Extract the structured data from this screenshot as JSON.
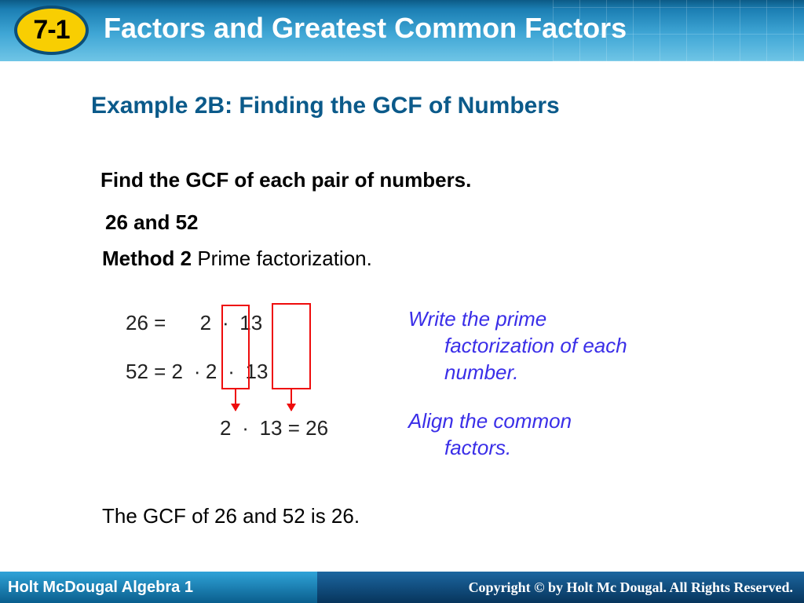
{
  "header": {
    "section_number": "7-1",
    "title": "Factors and Greatest Common Factors",
    "bg_gradient_top": "#0c5a85",
    "bg_gradient_bottom": "#6fc5e6",
    "badge_fill": "#f8ce02",
    "badge_border": "#0b4f7a",
    "title_color": "#ffffff",
    "title_fontsize": 36
  },
  "example": {
    "title": "Example 2B: Finding the GCF of Numbers",
    "title_color": "#0b5a8a",
    "title_fontsize": 30
  },
  "body": {
    "instruction": "Find the GCF of each pair of numbers.",
    "numbers": "26 and 52",
    "method_label": "Method 2",
    "method_desc": " Prime factorization.",
    "conclusion": "The GCF of 26 and 52 is 26.",
    "text_color": "#000000",
    "fontsize": 26
  },
  "work": {
    "row1": "26 =      2  ∙  13",
    "row2": "52 = 2  ∙ 2  ∙  13",
    "row3": "2  ∙  13 = 26",
    "box_border_color": "#ee0c0c",
    "arrow_color": "#ee0c0c"
  },
  "hints": {
    "hint1_line1": "Write the prime",
    "hint1_line2": "factorization of each",
    "hint1_line3": "number.",
    "hint2_line1": "Align the common",
    "hint2_line2": "factors.",
    "color": "#3a2ee8",
    "font_style": "italic",
    "fontsize": 26
  },
  "footer": {
    "left_text": "Holt McDougal Algebra 1",
    "right_text": "Copyright © by Holt Mc Dougal. All Rights Reserved.",
    "left_bg_top": "#2fa3d8",
    "left_bg_bottom": "#0a5e8d",
    "right_bg_top": "#1c66a0",
    "right_bg_bottom": "#07355c",
    "text_color": "#ffffff"
  }
}
